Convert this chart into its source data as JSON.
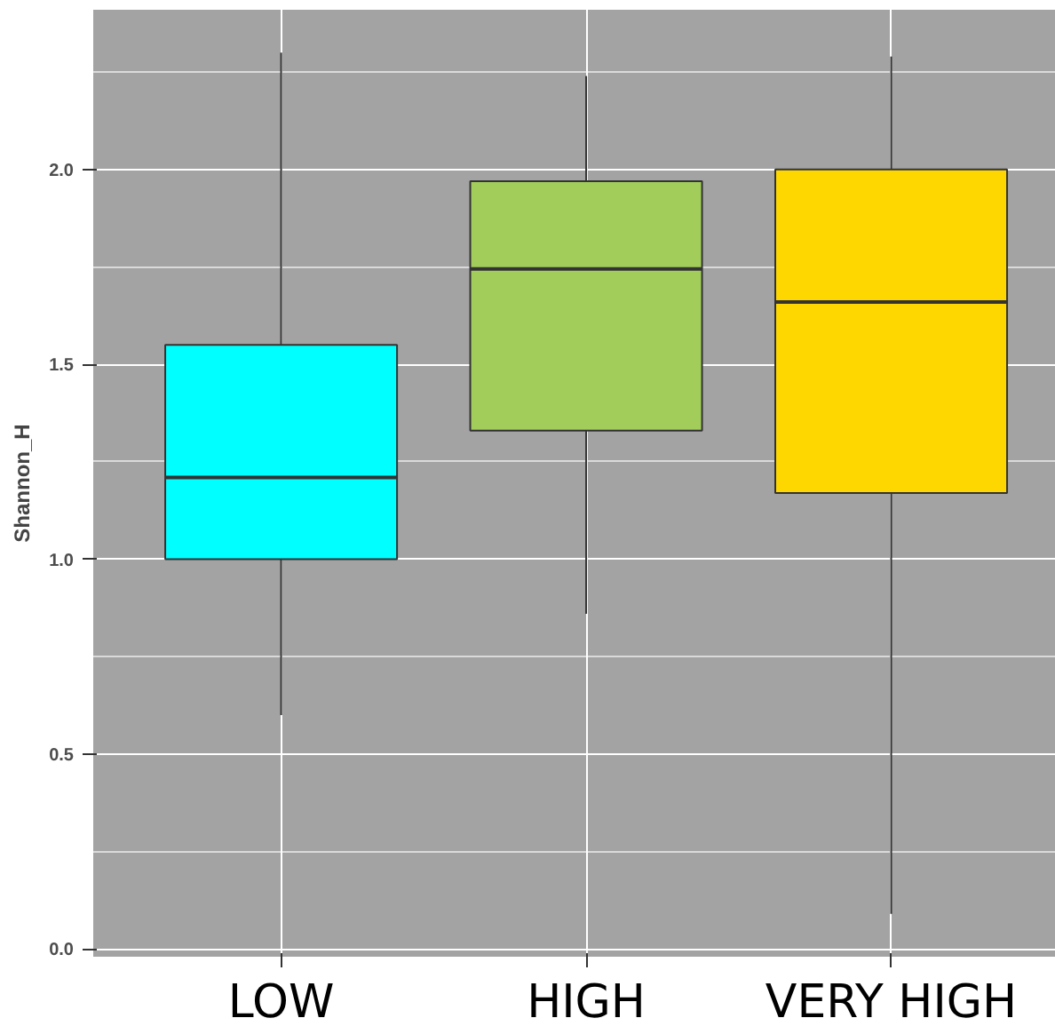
{
  "chart_data": {
    "type": "box",
    "ylabel": "Shannon_H",
    "categories": [
      "LOW",
      "HIGH",
      "VERY HIGH"
    ],
    "series": [
      {
        "colors": [
          "#00ffff",
          "#a2cd5a",
          "#ffd700"
        ],
        "boxes": [
          {
            "low": 0.6,
            "q1": 1.0,
            "median": 1.21,
            "q3": 1.55,
            "high": 2.3
          },
          {
            "low": 0.86,
            "q1": 1.33,
            "median": 1.745,
            "q3": 1.97,
            "high": 2.24
          },
          {
            "low": 0.09,
            "q1": 1.17,
            "median": 1.66,
            "q3": 2.0,
            "high": 2.29
          }
        ]
      }
    ],
    "ylim": [
      -0.02,
      2.41
    ],
    "yticks": [
      {
        "value": 0,
        "label": "0.0"
      },
      {
        "value": 0.5,
        "label": "0.5"
      },
      {
        "value": 1,
        "label": "1.0"
      },
      {
        "value": 1.5,
        "label": "1.5"
      },
      {
        "value": 2,
        "label": "2.0"
      }
    ],
    "grid": true
  }
}
